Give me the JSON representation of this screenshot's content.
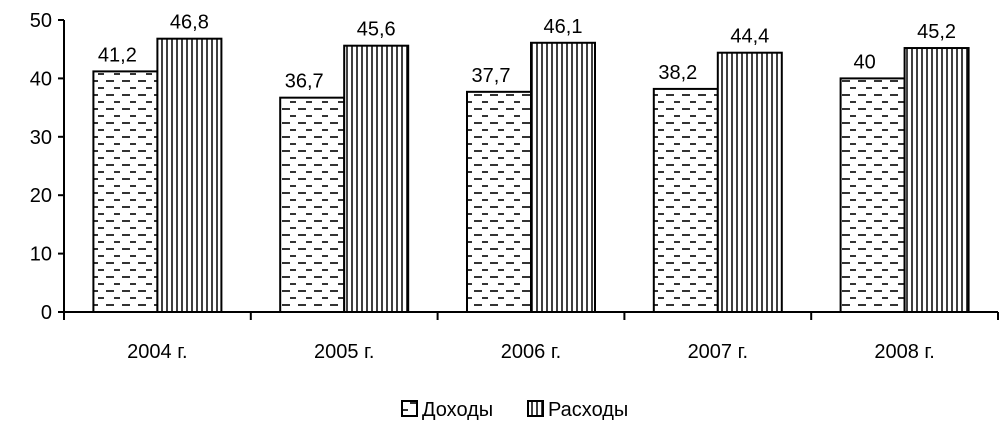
{
  "chart_data": {
    "type": "bar",
    "title": "",
    "xlabel": "",
    "ylabel": "",
    "categories": [
      "2004 г.",
      "2005 г.",
      "2006 г.",
      "2007 г.",
      "2008 г."
    ],
    "ylim": [
      0,
      50
    ],
    "yticks": [
      0,
      10,
      20,
      30,
      40,
      50
    ],
    "grid": false,
    "legend_position": "bottom",
    "series": [
      {
        "name": "Доходы",
        "values": [
          41.2,
          36.7,
          37.7,
          38.2,
          40
        ],
        "value_labels": [
          "41,2",
          "36,7",
          "37,7",
          "38,2",
          "40"
        ],
        "pattern": "dashed-horizontal"
      },
      {
        "name": "Расходы",
        "values": [
          46.8,
          45.6,
          46.1,
          44.4,
          45.2
        ],
        "value_labels": [
          "46,8",
          "45,6",
          "46,1",
          "44,4",
          "45,2"
        ],
        "pattern": "vertical-lines"
      }
    ]
  }
}
